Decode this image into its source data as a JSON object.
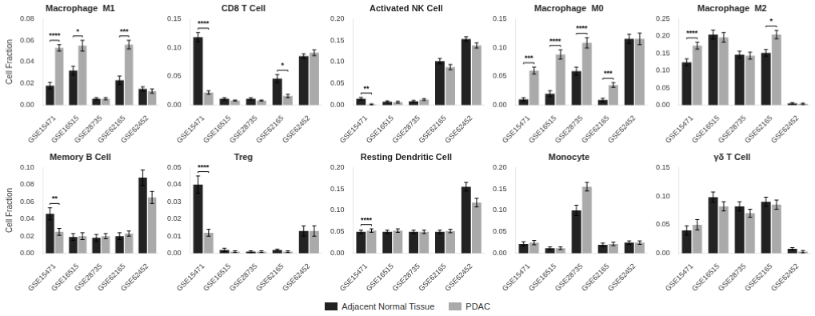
{
  "chart_data": [
    {
      "type": "bar",
      "title": "Macrophage  M1",
      "ylabel": "Cell Fraction",
      "categories": [
        "GSE15471",
        "GSE16515",
        "GSE28735",
        "GSE62165",
        "GSE62452"
      ],
      "series": [
        {
          "name": "Adjacent Normal Tissue",
          "color": "#222222",
          "values": [
            0.018,
            0.032,
            0.006,
            0.023,
            0.015
          ],
          "errors": [
            0.003,
            0.004,
            0.001,
            0.004,
            0.002
          ]
        },
        {
          "name": "PDAC",
          "color": "#aaaaaa",
          "values": [
            0.053,
            0.055,
            0.006,
            0.056,
            0.013
          ],
          "errors": [
            0.003,
            0.005,
            0.001,
            0.004,
            0.002
          ]
        }
      ],
      "ylim": [
        0,
        0.08
      ],
      "yticks": [
        {
          "value": 0,
          "label": "0.00"
        },
        0.02,
        0.04,
        0.06,
        0.08
      ],
      "annotations": [
        {
          "category": "GSE15471",
          "text": "****"
        },
        {
          "category": "GSE16515",
          "text": "*"
        },
        {
          "category": "GSE62165",
          "text": "***"
        }
      ],
      "grid": false,
      "legend": "bottom"
    },
    {
      "type": "bar",
      "title": "CD8 T Cell",
      "categories": [
        "GSE15471",
        "GSE16515",
        "GSE28735",
        "GSE62165",
        "GSE62452"
      ],
      "series": [
        {
          "name": "Adjacent Normal Tissue",
          "color": "#222222",
          "values": [
            0.118,
            0.011,
            0.011,
            0.046,
            0.085
          ],
          "errors": [
            0.008,
            0.002,
            0.002,
            0.007,
            0.004
          ]
        },
        {
          "name": "PDAC",
          "color": "#aaaaaa",
          "values": [
            0.022,
            0.008,
            0.008,
            0.016,
            0.091
          ],
          "errors": [
            0.003,
            0.001,
            0.001,
            0.003,
            0.005
          ]
        }
      ],
      "ylim": [
        0,
        0.15
      ],
      "yticks": [
        {
          "value": 0,
          "label": "0.00"
        },
        0.05,
        {
          "value": 0.1,
          "label": "0.10"
        },
        0.15
      ],
      "annotations": [
        {
          "category": "GSE15471",
          "text": "****"
        },
        {
          "category": "GSE62165",
          "text": "*"
        }
      ],
      "grid": false,
      "legend": "bottom"
    },
    {
      "type": "bar",
      "title": "Activated NK Cell",
      "categories": [
        "GSE15471",
        "GSE16515",
        "GSE28735",
        "GSE62165",
        "GSE62452"
      ],
      "series": [
        {
          "name": "Adjacent Normal Tissue",
          "color": "#222222",
          "values": [
            0.015,
            0.008,
            0.009,
            0.102,
            0.153
          ],
          "errors": [
            0.003,
            0.002,
            0.002,
            0.006,
            0.005
          ]
        },
        {
          "name": "PDAC",
          "color": "#aaaaaa",
          "values": [
            0.002,
            0.007,
            0.013,
            0.088,
            0.138
          ],
          "errors": [
            0.001,
            0.002,
            0.002,
            0.006,
            0.006
          ]
        }
      ],
      "ylim": [
        0,
        0.2
      ],
      "yticks": [
        {
          "value": 0,
          "label": "0.00"
        },
        0.05,
        {
          "value": 0.1,
          "label": "0.10"
        },
        0.15,
        {
          "value": 0.2,
          "label": "0.20"
        }
      ],
      "annotations": [
        {
          "category": "GSE15471",
          "text": "**"
        }
      ],
      "grid": false,
      "legend": "bottom"
    },
    {
      "type": "bar",
      "title": "Macrophage  M0",
      "categories": [
        "GSE15471",
        "GSE16515",
        "GSE28735",
        "GSE62165",
        "GSE62452"
      ],
      "series": [
        {
          "name": "Adjacent Normal Tissue",
          "color": "#222222",
          "values": [
            0.01,
            0.02,
            0.059,
            0.009,
            0.115
          ],
          "errors": [
            0.003,
            0.005,
            0.007,
            0.003,
            0.008
          ]
        },
        {
          "name": "PDAC",
          "color": "#aaaaaa",
          "values": [
            0.06,
            0.088,
            0.108,
            0.035,
            0.115
          ],
          "errors": [
            0.006,
            0.008,
            0.009,
            0.004,
            0.01
          ]
        }
      ],
      "ylim": [
        0,
        0.15
      ],
      "yticks": [
        {
          "value": 0,
          "label": "0.00"
        },
        0.05,
        {
          "value": 0.1,
          "label": "0.10"
        },
        0.15
      ],
      "annotations": [
        {
          "category": "GSE15471",
          "text": "***"
        },
        {
          "category": "GSE16515",
          "text": "****"
        },
        {
          "category": "GSE28735",
          "text": "****"
        },
        {
          "category": "GSE62165",
          "text": "***"
        }
      ],
      "grid": false,
      "legend": "bottom"
    },
    {
      "type": "bar",
      "title": "Macrophage  M2",
      "categories": [
        "GSE15471",
        "GSE16515",
        "GSE28735",
        "GSE62165",
        "GSE62452"
      ],
      "series": [
        {
          "name": "Adjacent Normal Tissue",
          "color": "#222222",
          "values": [
            0.124,
            0.204,
            0.146,
            0.151,
            0.005
          ],
          "errors": [
            0.01,
            0.013,
            0.01,
            0.01,
            0.002
          ]
        },
        {
          "name": "PDAC",
          "color": "#aaaaaa",
          "values": [
            0.172,
            0.196,
            0.143,
            0.204,
            0.004
          ],
          "errors": [
            0.01,
            0.014,
            0.01,
            0.012,
            0.002
          ]
        }
      ],
      "ylim": [
        0,
        0.25
      ],
      "yticks": [
        {
          "value": 0,
          "label": "0.00"
        },
        0.05,
        {
          "value": 0.1,
          "label": "0.10"
        },
        0.15,
        {
          "value": 0.2,
          "label": "0.20"
        },
        0.25
      ],
      "annotations": [
        {
          "category": "GSE15471",
          "text": "****"
        },
        {
          "category": "GSE62165",
          "text": "*"
        }
      ],
      "grid": false,
      "legend": "bottom"
    },
    {
      "type": "bar",
      "title": "Memory B Cell",
      "ylabel": "Cell Fraction",
      "categories": [
        "GSE15471",
        "GSE16515",
        "GSE28735",
        "GSE62165",
        "GSE62452"
      ],
      "series": [
        {
          "name": "Adjacent Normal Tissue",
          "color": "#222222",
          "values": [
            0.046,
            0.019,
            0.018,
            0.02,
            0.088
          ],
          "errors": [
            0.007,
            0.004,
            0.004,
            0.004,
            0.009
          ]
        },
        {
          "name": "PDAC",
          "color": "#aaaaaa",
          "values": [
            0.025,
            0.02,
            0.02,
            0.023,
            0.065
          ],
          "errors": [
            0.004,
            0.004,
            0.003,
            0.003,
            0.007
          ]
        }
      ],
      "ylim": [
        0,
        0.1
      ],
      "yticks": [
        {
          "value": 0,
          "label": "0.00"
        },
        0.02,
        0.04,
        0.06,
        0.08,
        {
          "value": 0.1,
          "label": "0.10"
        }
      ],
      "annotations": [
        {
          "category": "GSE15471",
          "text": "**"
        }
      ],
      "grid": false,
      "legend": "bottom"
    },
    {
      "type": "bar",
      "title": "Treg",
      "categories": [
        "GSE15471",
        "GSE16515",
        "GSE28735",
        "GSE62165",
        "GSE62452"
      ],
      "series": [
        {
          "name": "Adjacent Normal Tissue",
          "color": "#222222",
          "values": [
            0.04,
            0.002,
            0.001,
            0.002,
            0.013
          ],
          "errors": [
            0.005,
            0.001,
            0.0005,
            0.0005,
            0.003
          ]
        },
        {
          "name": "PDAC",
          "color": "#aaaaaa",
          "values": [
            0.012,
            0.001,
            0.001,
            0.001,
            0.013
          ],
          "errors": [
            0.002,
            0.0005,
            0.0005,
            0.0005,
            0.003
          ]
        }
      ],
      "ylim": [
        0,
        0.05
      ],
      "yticks": [
        {
          "value": 0,
          "label": "0.00"
        },
        0.01,
        0.02,
        0.03,
        0.04,
        0.05
      ],
      "annotations": [
        {
          "category": "GSE15471",
          "text": "****"
        }
      ],
      "grid": false,
      "legend": "bottom"
    },
    {
      "type": "bar",
      "title": "Resting Dendritic Cell",
      "categories": [
        "GSE15471",
        "GSE16515",
        "GSE28735",
        "GSE62165",
        "GSE62452"
      ],
      "series": [
        {
          "name": "Adjacent Normal Tissue",
          "color": "#222222",
          "values": [
            0.05,
            0.05,
            0.05,
            0.05,
            0.155
          ],
          "errors": [
            0.004,
            0.004,
            0.004,
            0.004,
            0.01
          ]
        },
        {
          "name": "PDAC",
          "color": "#aaaaaa",
          "values": [
            0.053,
            0.053,
            0.05,
            0.052,
            0.118
          ],
          "errors": [
            0.004,
            0.004,
            0.004,
            0.004,
            0.01
          ]
        }
      ],
      "ylim": [
        0,
        0.2
      ],
      "yticks": [
        {
          "value": 0,
          "label": "0.00"
        },
        0.05,
        {
          "value": 0.1,
          "label": "0.10"
        },
        0.15,
        {
          "value": 0.2,
          "label": "0.20"
        }
      ],
      "annotations": [
        {
          "category": "GSE15471",
          "text": "****"
        }
      ],
      "grid": false,
      "legend": "bottom"
    },
    {
      "type": "bar",
      "title": "Monocyte",
      "categories": [
        "GSE15471",
        "GSE16515",
        "GSE28735",
        "GSE62165",
        "GSE62452"
      ],
      "series": [
        {
          "name": "Adjacent Normal Tissue",
          "color": "#222222",
          "values": [
            0.022,
            0.012,
            0.1,
            0.02,
            0.025
          ],
          "errors": [
            0.005,
            0.003,
            0.012,
            0.004,
            0.004
          ]
        },
        {
          "name": "PDAC",
          "color": "#aaaaaa",
          "values": [
            0.025,
            0.012,
            0.155,
            0.022,
            0.025
          ],
          "errors": [
            0.005,
            0.003,
            0.01,
            0.004,
            0.004
          ]
        }
      ],
      "ylim": [
        0,
        0.2
      ],
      "yticks": [
        {
          "value": 0,
          "label": "0.00"
        },
        0.05,
        {
          "value": 0.1,
          "label": "0.10"
        },
        0.15,
        {
          "value": 0.2,
          "label": "0.20"
        }
      ],
      "grid": false,
      "legend": "bottom"
    },
    {
      "type": "bar",
      "title": "γδ T Cell",
      "categories": [
        "GSE15471",
        "GSE16515",
        "GSE28735",
        "GSE62165",
        "GSE62452"
      ],
      "series": [
        {
          "name": "Adjacent Normal Tissue",
          "color": "#222222",
          "values": [
            0.04,
            0.098,
            0.082,
            0.09,
            0.008
          ],
          "errors": [
            0.008,
            0.009,
            0.008,
            0.008,
            0.002
          ]
        },
        {
          "name": "PDAC",
          "color": "#aaaaaa",
          "values": [
            0.05,
            0.082,
            0.07,
            0.085,
            0.003
          ],
          "errors": [
            0.009,
            0.008,
            0.007,
            0.008,
            0.002
          ]
        }
      ],
      "ylim": [
        0,
        0.15
      ],
      "yticks": [
        {
          "value": 0,
          "label": "0.00"
        },
        0.05,
        {
          "value": 0.1,
          "label": "0.10"
        },
        0.15
      ],
      "grid": false,
      "legend": "bottom"
    }
  ]
}
